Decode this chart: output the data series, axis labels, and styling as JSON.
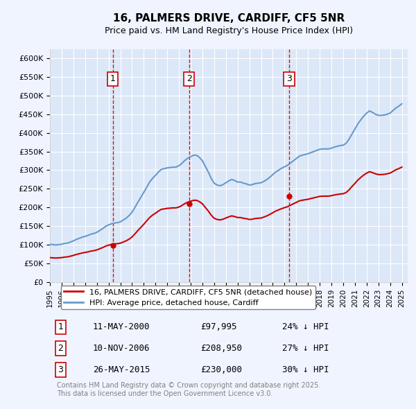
{
  "title": "16, PALMERS DRIVE, CARDIFF, CF5 5NR",
  "subtitle": "Price paid vs. HM Land Registry's House Price Index (HPI)",
  "background_color": "#f0f4ff",
  "plot_bg_color": "#dce8f8",
  "ylabel_prefix": "£",
  "ylim": [
    0,
    625000
  ],
  "yticks": [
    0,
    50000,
    100000,
    150000,
    200000,
    250000,
    300000,
    350000,
    400000,
    450000,
    500000,
    550000,
    600000
  ],
  "xlim_start": 1995.0,
  "xlim_end": 2025.5,
  "xticks": [
    1995,
    1996,
    1997,
    1998,
    1999,
    2000,
    2001,
    2002,
    2003,
    2004,
    2005,
    2006,
    2007,
    2008,
    2009,
    2010,
    2011,
    2012,
    2013,
    2014,
    2015,
    2016,
    2017,
    2018,
    2019,
    2020,
    2021,
    2022,
    2023,
    2024,
    2025
  ],
  "hpi_color": "#6699cc",
  "sale_color": "#cc0000",
  "vline_color": "#cc0000",
  "marker_color_sale": "#cc0000",
  "marker_color_hpi": "#cc0000",
  "sales": [
    {
      "date_year": 2000.36,
      "price": 97995,
      "label": "1"
    },
    {
      "date_year": 2006.86,
      "price": 208950,
      "label": "2"
    },
    {
      "date_year": 2015.39,
      "price": 230000,
      "label": "3"
    }
  ],
  "sale_table": [
    {
      "num": "1",
      "date": "11-MAY-2000",
      "price": "£97,995",
      "pct": "24% ↓ HPI"
    },
    {
      "num": "2",
      "date": "10-NOV-2006",
      "price": "£208,950",
      "pct": "27% ↓ HPI"
    },
    {
      "num": "3",
      "date": "26-MAY-2015",
      "price": "£230,000",
      "pct": "30% ↓ HPI"
    }
  ],
  "legend_sale_label": "16, PALMERS DRIVE, CARDIFF, CF5 5NR (detached house)",
  "legend_hpi_label": "HPI: Average price, detached house, Cardiff",
  "footer": "Contains HM Land Registry data © Crown copyright and database right 2025.\nThis data is licensed under the Open Government Licence v3.0.",
  "hpi_data": {
    "years": [
      1995.0,
      1995.25,
      1995.5,
      1995.75,
      1996.0,
      1996.25,
      1996.5,
      1996.75,
      1997.0,
      1997.25,
      1997.5,
      1997.75,
      1998.0,
      1998.25,
      1998.5,
      1998.75,
      1999.0,
      1999.25,
      1999.5,
      1999.75,
      2000.0,
      2000.25,
      2000.5,
      2000.75,
      2001.0,
      2001.25,
      2001.5,
      2001.75,
      2002.0,
      2002.25,
      2002.5,
      2002.75,
      2003.0,
      2003.25,
      2003.5,
      2003.75,
      2004.0,
      2004.25,
      2004.5,
      2004.75,
      2005.0,
      2005.25,
      2005.5,
      2005.75,
      2006.0,
      2006.25,
      2006.5,
      2006.75,
      2007.0,
      2007.25,
      2007.5,
      2007.75,
      2008.0,
      2008.25,
      2008.5,
      2008.75,
      2009.0,
      2009.25,
      2009.5,
      2009.75,
      2010.0,
      2010.25,
      2010.5,
      2010.75,
      2011.0,
      2011.25,
      2011.5,
      2011.75,
      2012.0,
      2012.25,
      2012.5,
      2012.75,
      2013.0,
      2013.25,
      2013.5,
      2013.75,
      2014.0,
      2014.25,
      2014.5,
      2014.75,
      2015.0,
      2015.25,
      2015.5,
      2015.75,
      2016.0,
      2016.25,
      2016.5,
      2016.75,
      2017.0,
      2017.25,
      2017.5,
      2017.75,
      2018.0,
      2018.25,
      2018.5,
      2018.75,
      2019.0,
      2019.25,
      2019.5,
      2019.75,
      2020.0,
      2020.25,
      2020.5,
      2020.75,
      2021.0,
      2021.25,
      2021.5,
      2021.75,
      2022.0,
      2022.25,
      2022.5,
      2022.75,
      2023.0,
      2023.25,
      2023.5,
      2023.75,
      2024.0,
      2024.25,
      2024.5,
      2024.75,
      2025.0
    ],
    "values": [
      101000,
      100000,
      99000,
      100000,
      101000,
      103000,
      104000,
      107000,
      110000,
      114000,
      117000,
      120000,
      122000,
      125000,
      128000,
      130000,
      133000,
      138000,
      143000,
      149000,
      153000,
      156000,
      158000,
      159000,
      161000,
      166000,
      171000,
      178000,
      187000,
      200000,
      214000,
      227000,
      240000,
      254000,
      268000,
      278000,
      286000,
      295000,
      302000,
      304000,
      306000,
      307000,
      308000,
      308000,
      312000,
      318000,
      326000,
      332000,
      336000,
      340000,
      340000,
      334000,
      325000,
      310000,
      295000,
      278000,
      265000,
      260000,
      258000,
      261000,
      266000,
      271000,
      275000,
      272000,
      268000,
      268000,
      265000,
      263000,
      260000,
      261000,
      264000,
      265000,
      266000,
      270000,
      275000,
      281000,
      288000,
      295000,
      300000,
      305000,
      309000,
      313000,
      319000,
      325000,
      331000,
      337000,
      340000,
      342000,
      344000,
      347000,
      350000,
      353000,
      356000,
      357000,
      357000,
      357000,
      359000,
      362000,
      364000,
      366000,
      367000,
      372000,
      383000,
      397000,
      410000,
      424000,
      435000,
      445000,
      453000,
      459000,
      455000,
      450000,
      447000,
      447000,
      448000,
      450000,
      453000,
      460000,
      467000,
      472000,
      478000
    ]
  },
  "sale_hpi_data": {
    "years": [
      1995.0,
      1995.25,
      1995.5,
      1995.75,
      1996.0,
      1996.25,
      1996.5,
      1996.75,
      1997.0,
      1997.25,
      1997.5,
      1997.75,
      1998.0,
      1998.25,
      1998.5,
      1998.75,
      1999.0,
      1999.25,
      1999.5,
      1999.75,
      2000.0,
      2000.25,
      2000.5,
      2000.75,
      2001.0,
      2001.25,
      2001.5,
      2001.75,
      2002.0,
      2002.25,
      2002.5,
      2002.75,
      2003.0,
      2003.25,
      2003.5,
      2003.75,
      2004.0,
      2004.25,
      2004.5,
      2004.75,
      2005.0,
      2005.25,
      2005.5,
      2005.75,
      2006.0,
      2006.25,
      2006.5,
      2006.75,
      2007.0,
      2007.25,
      2007.5,
      2007.75,
      2008.0,
      2008.25,
      2008.5,
      2008.75,
      2009.0,
      2009.25,
      2009.5,
      2009.75,
      2010.0,
      2010.25,
      2010.5,
      2010.75,
      2011.0,
      2011.25,
      2011.5,
      2011.75,
      2012.0,
      2012.25,
      2012.5,
      2012.75,
      2013.0,
      2013.25,
      2013.5,
      2013.75,
      2014.0,
      2014.25,
      2014.5,
      2014.75,
      2015.0,
      2015.25,
      2015.5,
      2015.75,
      2016.0,
      2016.25,
      2016.5,
      2016.75,
      2017.0,
      2017.25,
      2017.5,
      2017.75,
      2018.0,
      2018.25,
      2018.5,
      2018.75,
      2019.0,
      2019.25,
      2019.5,
      2019.75,
      2020.0,
      2020.25,
      2020.5,
      2020.75,
      2021.0,
      2021.25,
      2021.5,
      2021.75,
      2022.0,
      2022.25,
      2022.5,
      2022.75,
      2023.0,
      2023.25,
      2023.5,
      2023.75,
      2024.0,
      2024.25,
      2024.5,
      2024.75,
      2025.0
    ],
    "values": [
      65000,
      64500,
      64000,
      64500,
      65000,
      66500,
      67000,
      69000,
      71000,
      73500,
      75500,
      77500,
      79000,
      80500,
      82500,
      83800,
      85800,
      89000,
      92000,
      96000,
      98500,
      100500,
      101800,
      102500,
      103800,
      107000,
      110200,
      114700,
      120500,
      128900,
      137900,
      146300,
      154600,
      163700,
      172700,
      179200,
      184300,
      190000,
      194700,
      196000,
      197300,
      197900,
      198600,
      198600,
      201000,
      204900,
      210100,
      213900,
      216600,
      219000,
      219000,
      215200,
      209500,
      199800,
      190200,
      179100,
      170800,
      167600,
      166300,
      168200,
      171400,
      174600,
      177200,
      175300,
      172700,
      172700,
      170800,
      169500,
      167600,
      168200,
      170100,
      170800,
      171400,
      174000,
      177200,
      181200,
      185600,
      190100,
      193400,
      196500,
      199200,
      201700,
      205700,
      209500,
      213300,
      217200,
      219100,
      220400,
      221700,
      223700,
      225600,
      227500,
      229500,
      230100,
      230100,
      230100,
      231400,
      233300,
      234600,
      235900,
      236600,
      239800,
      246900,
      256000,
      264300,
      273300,
      280300,
      286800,
      291900,
      295900,
      293300,
      290100,
      288100,
      288100,
      288700,
      290100,
      292000,
      296500,
      301000,
      304200,
      308100
    ]
  }
}
